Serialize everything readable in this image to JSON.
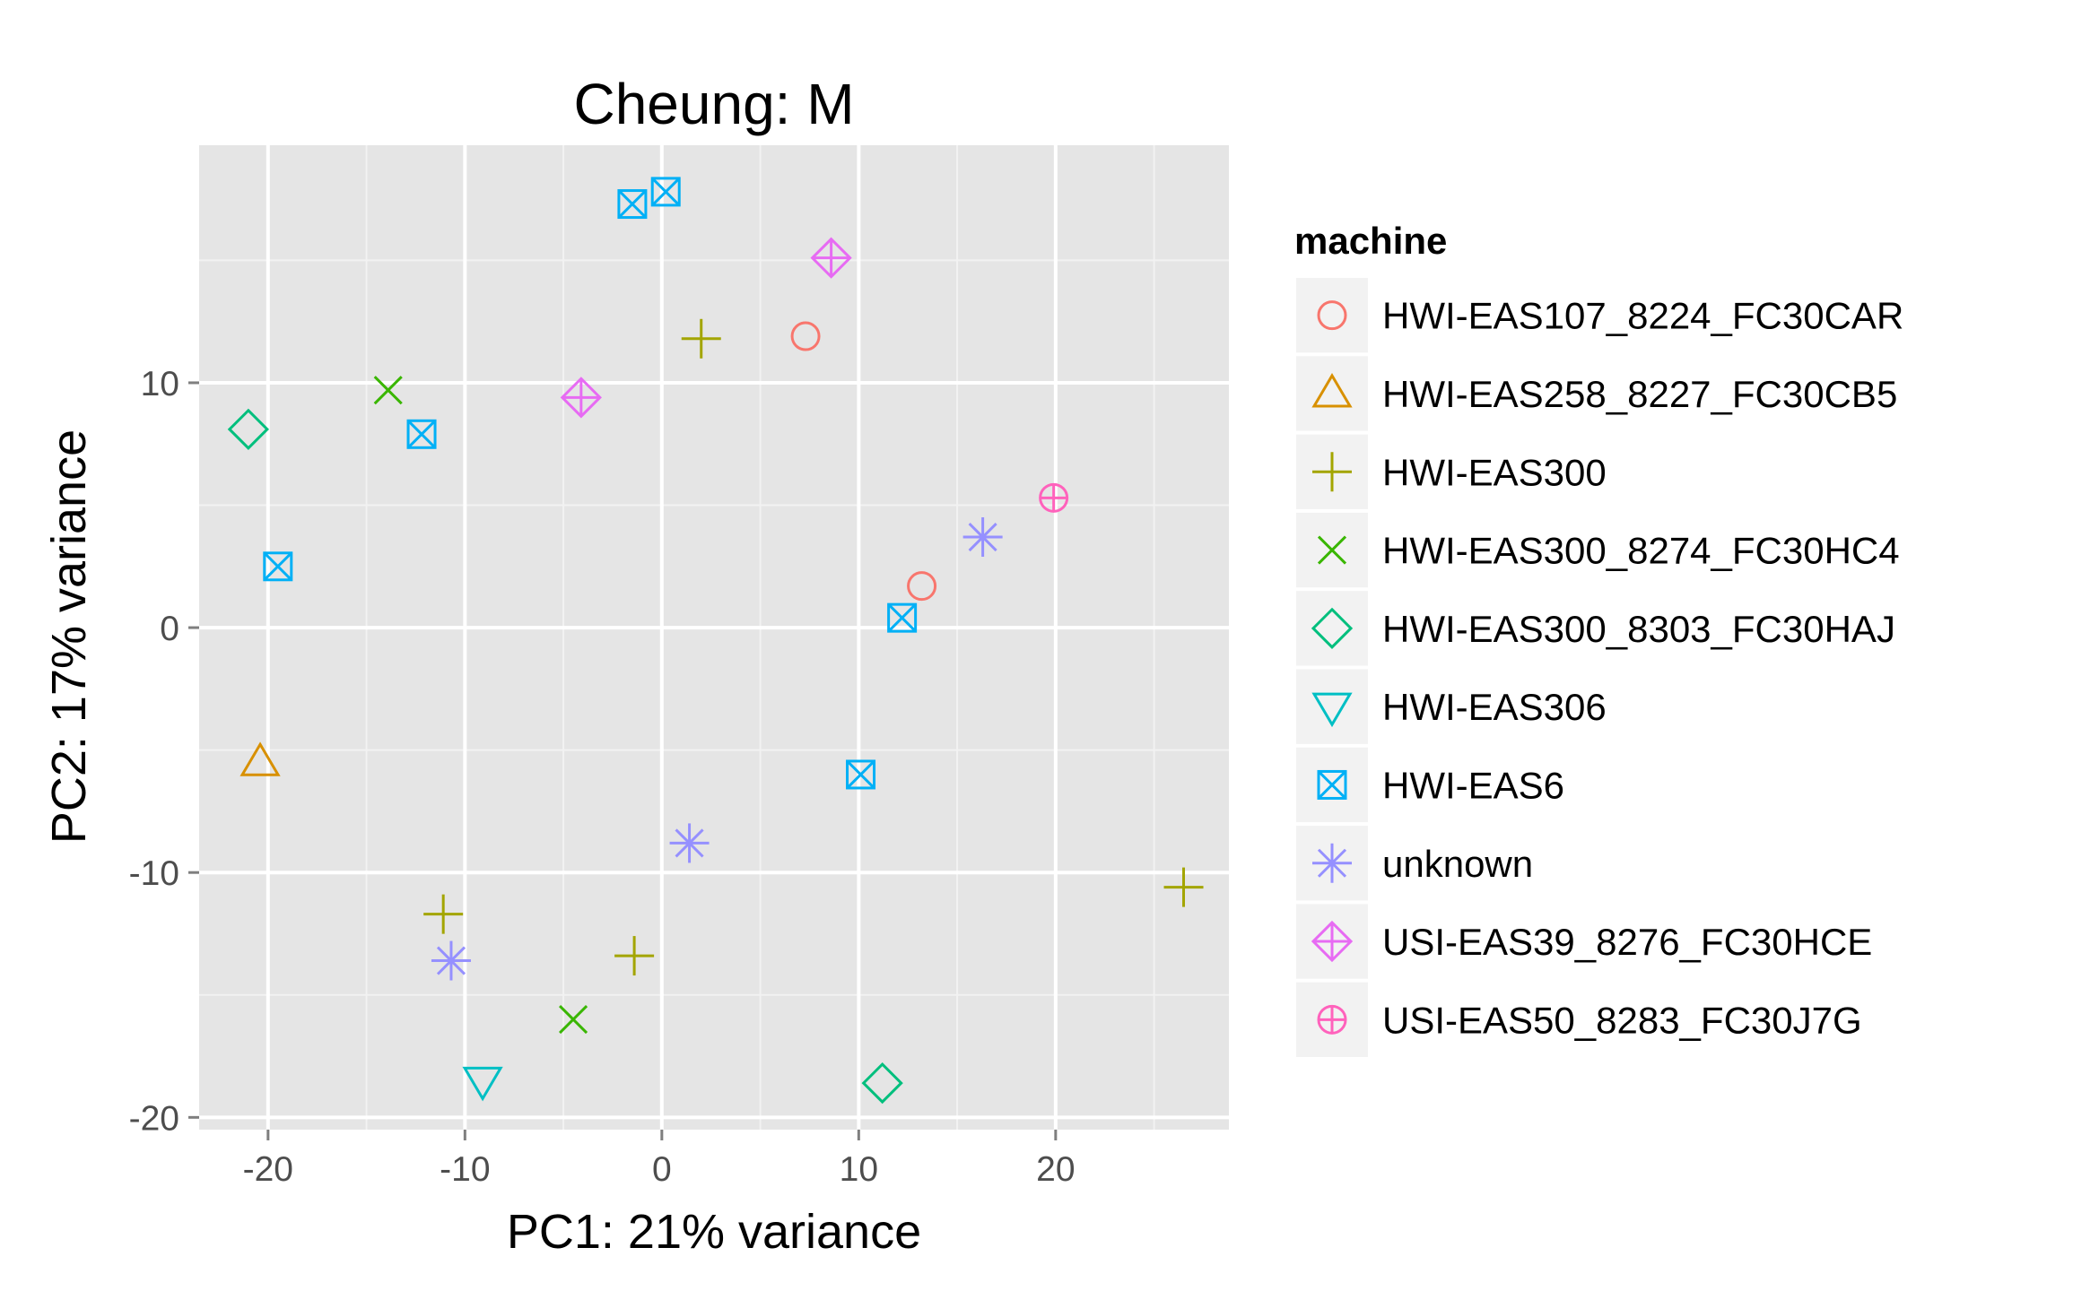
{
  "chart_data": {
    "type": "scatter",
    "title": "Cheung: M",
    "xlabel": "PC1: 21% variance",
    "ylabel": "PC2: 17% variance",
    "xlim": [
      -23.5,
      28.8
    ],
    "ylim": [
      -20.5,
      19.7
    ],
    "xticks": [
      -20,
      -10,
      0,
      10,
      20
    ],
    "xtick_labels": [
      "-20",
      "-10",
      "0",
      "10",
      "20"
    ],
    "yticks": [
      -20,
      -10,
      0,
      10
    ],
    "ytick_labels": [
      "-20",
      "-10",
      "0",
      "10"
    ],
    "grid": true,
    "legend_position": "right",
    "legend_title": "machine",
    "series": [
      {
        "name": "HWI-EAS107_8224_FC30CAR",
        "color": "#F8766D",
        "shape": "circle",
        "points": [
          [
            7.3,
            11.9
          ],
          [
            13.2,
            1.7
          ]
        ]
      },
      {
        "name": "HWI-EAS258_8227_FC30CB5",
        "color": "#D89000",
        "shape": "triangle-up",
        "points": [
          [
            -20.4,
            -5.5
          ]
        ]
      },
      {
        "name": "HWI-EAS300",
        "color": "#A3A500",
        "shape": "plus",
        "points": [
          [
            2.0,
            11.8
          ],
          [
            -11.1,
            -11.7
          ],
          [
            -1.4,
            -13.4
          ],
          [
            26.5,
            -10.6
          ]
        ]
      },
      {
        "name": "HWI-EAS300_8274_FC30HC4",
        "color": "#39B600",
        "shape": "cross",
        "points": [
          [
            -13.9,
            9.7
          ],
          [
            -4.5,
            -16.0
          ]
        ]
      },
      {
        "name": "HWI-EAS300_8303_FC30HAJ",
        "color": "#00BF7D",
        "shape": "diamond",
        "points": [
          [
            -21.0,
            8.1
          ],
          [
            11.2,
            -18.6
          ]
        ]
      },
      {
        "name": "HWI-EAS306",
        "color": "#00BFC4",
        "shape": "triangle-down",
        "points": [
          [
            -9.1,
            -18.5
          ]
        ]
      },
      {
        "name": "HWI-EAS6",
        "color": "#00B0F6",
        "shape": "square-cross",
        "points": [
          [
            0.2,
            17.8
          ],
          [
            -1.5,
            17.3
          ],
          [
            -12.2,
            7.9
          ],
          [
            -19.5,
            2.5
          ],
          [
            12.2,
            0.4
          ],
          [
            10.1,
            -6.0
          ]
        ]
      },
      {
        "name": "unknown",
        "color": "#9590FF",
        "shape": "asterisk",
        "points": [
          [
            16.3,
            3.7
          ],
          [
            1.4,
            -8.8
          ],
          [
            -10.7,
            -13.6
          ]
        ]
      },
      {
        "name": "USI-EAS39_8276_FC30HCE",
        "color": "#E76BF3",
        "shape": "diamond-plus",
        "points": [
          [
            8.6,
            15.1
          ],
          [
            -4.1,
            9.4
          ]
        ]
      },
      {
        "name": "USI-EAS50_8283_FC30J7G",
        "color": "#FF62BC",
        "shape": "circle-plus",
        "points": [
          [
            19.9,
            5.3
          ]
        ]
      }
    ]
  }
}
